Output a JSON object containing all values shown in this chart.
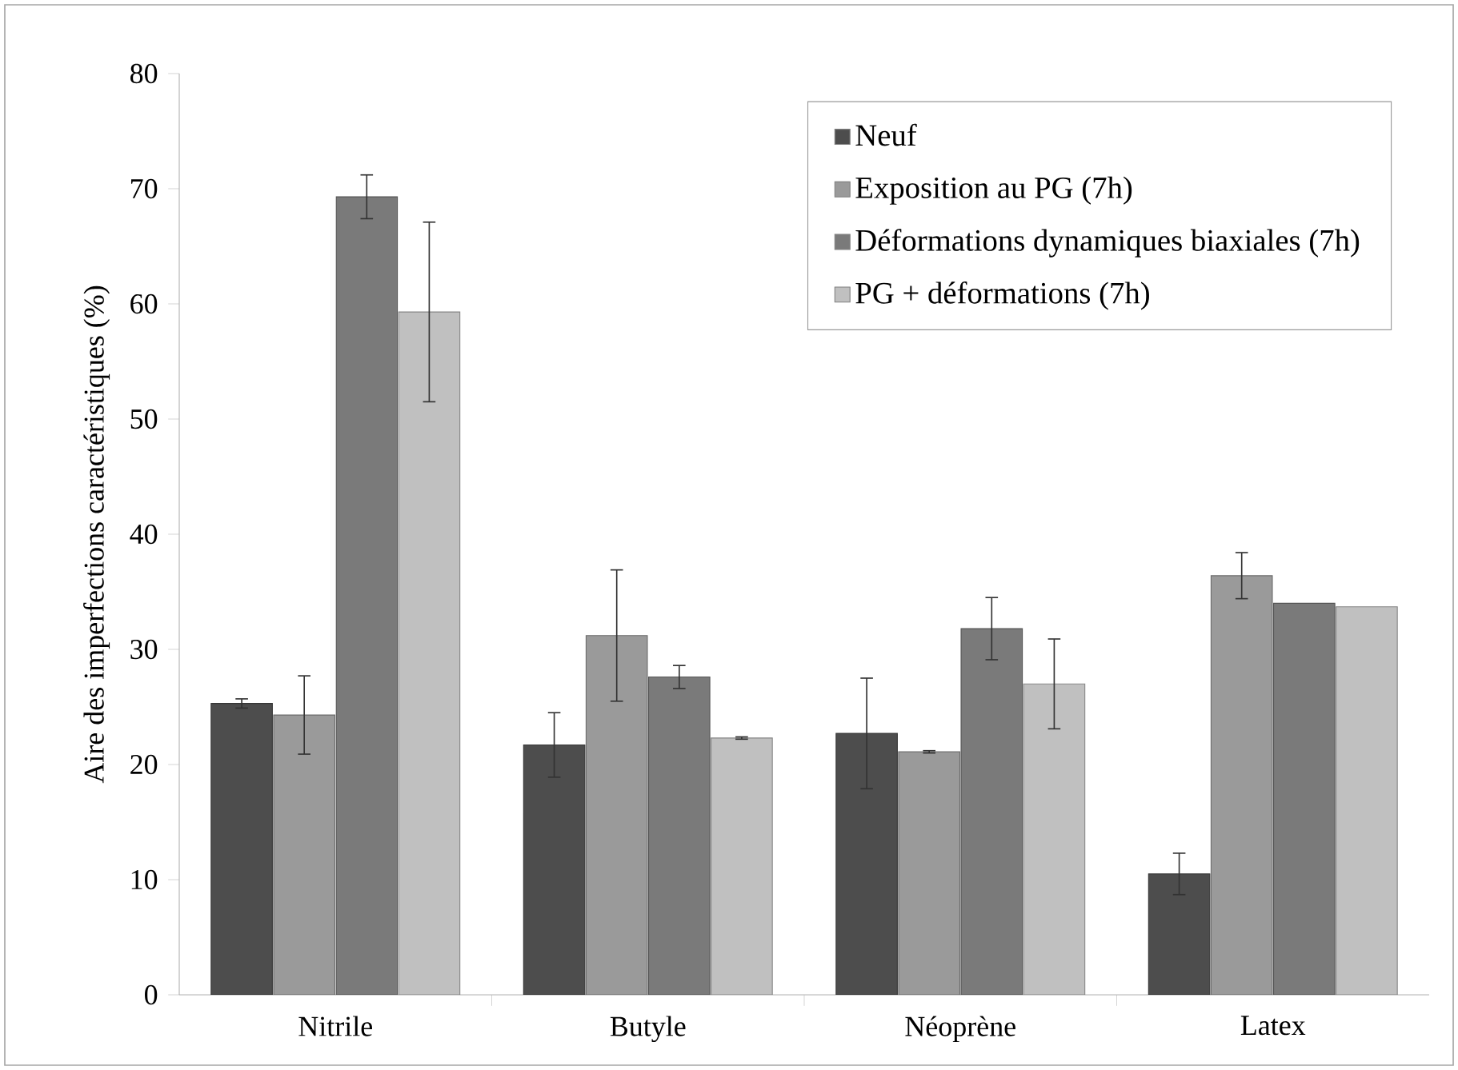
{
  "chart_data": {
    "type": "bar",
    "ylabel": "Aire des imperfections caractéristiques (%)",
    "categories": [
      "Nitrile",
      "Butyle",
      "Néoprène",
      "Latex"
    ],
    "series": [
      {
        "name": "Neuf",
        "color": "#4d4d4d",
        "values": [
          25.3,
          21.7,
          22.7,
          10.5
        ],
        "errors": [
          0.4,
          2.8,
          4.8,
          1.8
        ]
      },
      {
        "name": "Exposition au PG (7h)",
        "color": "#9a9a9a",
        "values": [
          24.3,
          31.2,
          21.1,
          36.4
        ],
        "errors": [
          3.4,
          5.7,
          0.1,
          2
        ]
      },
      {
        "name": "Déformations dynamiques biaxiales (7h)",
        "color": "#7a7a7a",
        "values": [
          69.3,
          27.6,
          31.8,
          34
        ],
        "errors": [
          1.9,
          1,
          2.7,
          null
        ]
      },
      {
        "name": "PG + déformations (7h)",
        "color": "#c0c0c0",
        "values": [
          59.3,
          22.3,
          27,
          33.7
        ],
        "errors": [
          7.8,
          0.1,
          3.9,
          null
        ]
      }
    ],
    "ylim": [
      0,
      80
    ],
    "yticks": [
      0,
      10,
      20,
      30,
      40,
      50,
      60,
      70,
      80
    ],
    "grid": false,
    "legend": "top right"
  }
}
